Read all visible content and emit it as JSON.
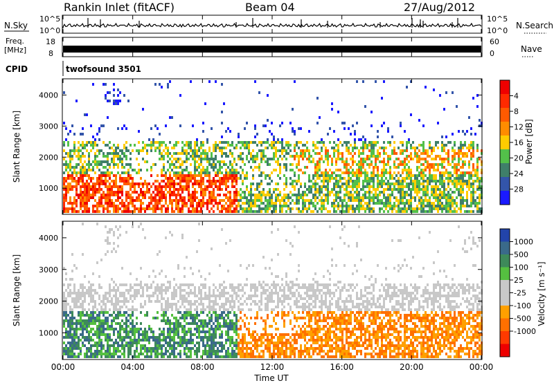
{
  "header": {
    "station": "Rankin Inlet (fitACF)",
    "beam": "Beam 04",
    "date": "27/Aug/2012"
  },
  "top_panels": {
    "nsky_label": "N.Sky",
    "nsearch_label": "N.Search",
    "nsky_ticks": [
      "10^5",
      "10^0"
    ],
    "nsearch_ticks": [
      "10^5",
      "10^0"
    ],
    "freq_label_line1": "Freq.",
    "freq_label_line2": "[MHz]",
    "freq_ticks": [
      "18",
      "8"
    ],
    "nave_label": "Nave",
    "nave_ticks": [
      "60",
      "0"
    ],
    "cpid_label": "CPID",
    "cpid_text": "twofsound 3501"
  },
  "chart_data": [
    {
      "type": "heatmap",
      "title": "",
      "xlabel": "",
      "ylabel": "Slant Range [km]",
      "x_ticks": [
        "00:00",
        "04:00",
        "08:00",
        "12:00",
        "16:00",
        "20:00",
        "00:00"
      ],
      "y_ticks": [
        1000,
        2000,
        3000,
        4000
      ],
      "ylim": [
        180,
        4500
      ],
      "colorbar": {
        "label": "Power [dB]",
        "ticks": [
          4,
          8,
          12,
          16,
          20,
          24,
          28
        ],
        "colors": [
          "#1a1aff",
          "#3355aa",
          "#3f7f6a",
          "#53c04a",
          "#ffcc00",
          "#ff8c00",
          "#ff5a00",
          "#ff2a00",
          "#ee0000"
        ]
      }
    },
    {
      "type": "heatmap",
      "title": "",
      "xlabel": "Time UT",
      "ylabel": "Slant Range [km]",
      "x_ticks": [
        "00:00",
        "04:00",
        "08:00",
        "12:00",
        "16:00",
        "20:00",
        "00:00"
      ],
      "y_ticks": [
        1000,
        2000,
        3000,
        4000
      ],
      "ylim": [
        180,
        4500
      ],
      "colorbar": {
        "label": "Velocity [m s⁻¹]",
        "ticks": [
          1000,
          500,
          100,
          25,
          -25,
          -100,
          -500,
          -1000
        ],
        "colors": [
          "#2244aa",
          "#3a6a8a",
          "#3e8a5a",
          "#55c040",
          "#c8c8c8",
          "#c8c8c8",
          "#ffa000",
          "#ff7000",
          "#ff3a00",
          "#ee0000"
        ]
      }
    }
  ]
}
